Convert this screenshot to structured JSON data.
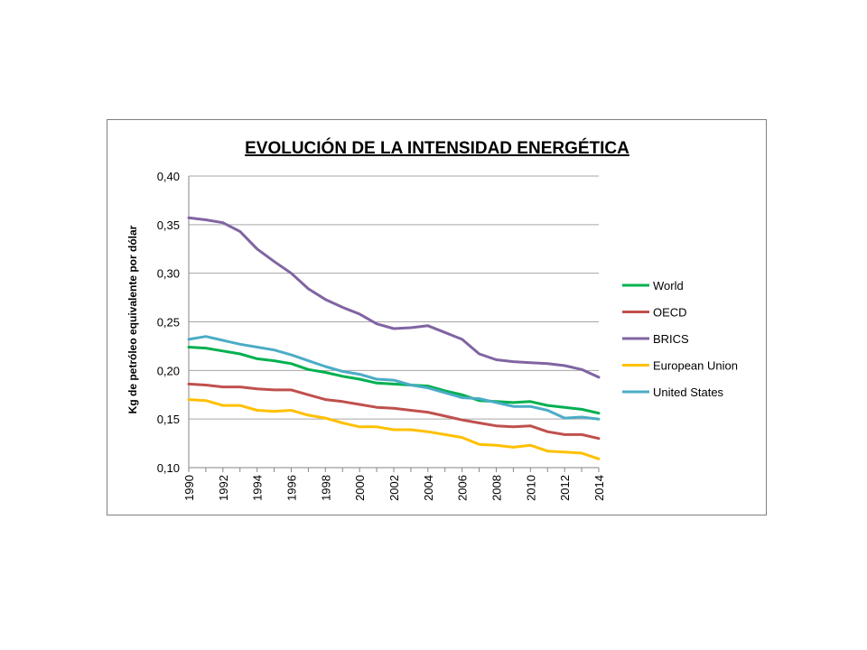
{
  "chart_data": {
    "type": "line",
    "title": "EVOLUCIÓN DE LA INTENSIDAD ENERGÉTICA",
    "xlabel": "",
    "ylabel": "Kg de petróleo equivalente por dólar",
    "ylim": [
      0.1,
      0.4
    ],
    "yticks": [
      0.1,
      0.15,
      0.2,
      0.25,
      0.3,
      0.35,
      0.4
    ],
    "ytick_labels": [
      "0,10",
      "0,15",
      "0,20",
      "0,25",
      "0,30",
      "0,35",
      "0,40"
    ],
    "x": [
      1990,
      1991,
      1992,
      1993,
      1994,
      1995,
      1996,
      1997,
      1998,
      1999,
      2000,
      2001,
      2002,
      2003,
      2004,
      2005,
      2006,
      2007,
      2008,
      2009,
      2010,
      2011,
      2012,
      2013,
      2014
    ],
    "xtick_labels": [
      "1990",
      "1992",
      "1994",
      "1996",
      "1998",
      "2000",
      "2002",
      "2004",
      "2006",
      "2008",
      "2010",
      "2012",
      "2014"
    ],
    "grid": true,
    "legend_position": "right",
    "series": [
      {
        "name": "World",
        "color": "#00b050",
        "values": [
          0.224,
          0.223,
          0.22,
          0.217,
          0.212,
          0.21,
          0.207,
          0.201,
          0.198,
          0.194,
          0.191,
          0.187,
          0.186,
          0.185,
          0.184,
          0.179,
          0.175,
          0.169,
          0.168,
          0.167,
          0.168,
          0.164,
          0.162,
          0.16,
          0.156
        ]
      },
      {
        "name": "OECD",
        "color": "#c0504d",
        "values": [
          0.186,
          0.185,
          0.183,
          0.183,
          0.181,
          0.18,
          0.18,
          0.175,
          0.17,
          0.168,
          0.165,
          0.162,
          0.161,
          0.159,
          0.157,
          0.153,
          0.149,
          0.146,
          0.143,
          0.142,
          0.143,
          0.137,
          0.134,
          0.134,
          0.13
        ]
      },
      {
        "name": "BRICS",
        "color": "#8064a2",
        "values": [
          0.357,
          0.355,
          0.352,
          0.343,
          0.325,
          0.312,
          0.3,
          0.284,
          0.273,
          0.265,
          0.258,
          0.248,
          0.243,
          0.244,
          0.246,
          0.239,
          0.232,
          0.217,
          0.211,
          0.209,
          0.208,
          0.207,
          0.205,
          0.201,
          0.193
        ]
      },
      {
        "name": "European Union",
        "color": "#ffc000",
        "values": [
          0.17,
          0.169,
          0.164,
          0.164,
          0.159,
          0.158,
          0.159,
          0.154,
          0.151,
          0.146,
          0.142,
          0.142,
          0.139,
          0.139,
          0.137,
          0.134,
          0.131,
          0.124,
          0.123,
          0.121,
          0.123,
          0.117,
          0.116,
          0.115,
          0.109
        ]
      },
      {
        "name": "United States",
        "color": "#4bacc6",
        "values": [
          0.232,
          0.235,
          0.231,
          0.227,
          0.224,
          0.221,
          0.216,
          0.21,
          0.204,
          0.199,
          0.196,
          0.191,
          0.19,
          0.185,
          0.182,
          0.177,
          0.172,
          0.171,
          0.167,
          0.163,
          0.163,
          0.159,
          0.151,
          0.152,
          0.15
        ]
      }
    ]
  }
}
